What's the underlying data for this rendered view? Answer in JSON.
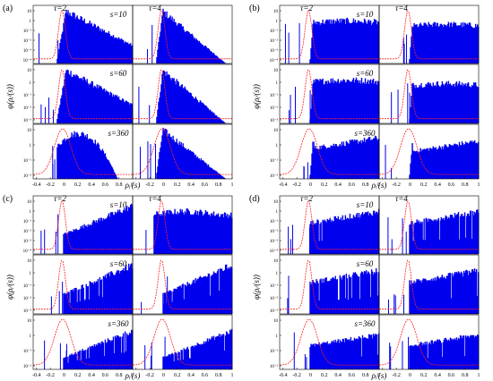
{
  "figure": {
    "panels": [
      {
        "label": "(a)",
        "ylabel": "φ(ρᵢʲ(s))",
        "xlabel": "ρᵢʲ(s)",
        "shape": "peak"
      },
      {
        "label": "(b)",
        "ylabel": "φ(ρᵢʲ(s))",
        "xlabel": "ρᵢʲ(s)",
        "shape": "plateau"
      },
      {
        "label": "(c)",
        "ylabel": "φ(ρᵢʲ(s))",
        "xlabel": "ρᵢʲ(s)",
        "shape": "rise"
      },
      {
        "label": "(d)",
        "ylabel": "φ(ρᵢʲ(s))",
        "xlabel": "ρᵢʲ(s)",
        "shape": "comb"
      }
    ],
    "col_labels": [
      "τ=2",
      "τ=4"
    ],
    "row_labels": [
      "s=10",
      "s=60",
      "s=360"
    ]
  },
  "chart_data": {
    "type": "bar",
    "x_ticks": [
      "-0.4",
      "-0.2",
      "0",
      "0.2",
      "0.4",
      "0.6",
      "0.8",
      "1"
    ],
    "xlim": [
      -0.45,
      1.0
    ],
    "y_ticks": [
      "10",
      "1",
      "10⁻¹",
      "10⁻²",
      "10⁻³",
      "10⁻⁴",
      "10⁻⁵"
    ],
    "y_scale": "log",
    "colors": {
      "histogram": "#0000ee",
      "reference": "#ff2020",
      "axis": "#000000"
    }
  }
}
